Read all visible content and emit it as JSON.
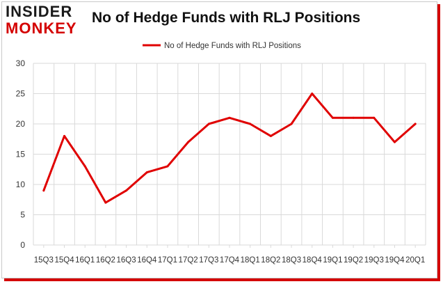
{
  "logo": {
    "line1": "INSIDER",
    "line2": "MONKEY",
    "color_top": "#1a1a1a",
    "color_bottom": "#d40000"
  },
  "colors": {
    "series": "#e00000",
    "grid": "#d9d9d9",
    "axis_text": "#333333",
    "frame_shadow": "#d40000"
  },
  "chart_data": {
    "type": "line",
    "title": "No of Hedge Funds with RLJ Positions",
    "xlabel": "",
    "ylabel": "",
    "ylim": [
      0,
      30
    ],
    "yticks": [
      0,
      5,
      10,
      15,
      20,
      25,
      30
    ],
    "grid": true,
    "legend_position": "top-center",
    "categories": [
      "15Q3",
      "15Q4",
      "16Q1",
      "16Q2",
      "16Q3",
      "16Q4",
      "17Q1",
      "17Q2",
      "17Q3",
      "17Q4",
      "18Q1",
      "18Q2",
      "18Q3",
      "18Q4",
      "19Q1",
      "19Q2",
      "19Q3",
      "19Q4",
      "20Q1"
    ],
    "series": [
      {
        "name": "No of Hedge Funds with RLJ Positions",
        "values": [
          9,
          18,
          13,
          7,
          9,
          12,
          13,
          17,
          20,
          21,
          20,
          18,
          20,
          25,
          21,
          21,
          21,
          17,
          20
        ]
      }
    ]
  }
}
